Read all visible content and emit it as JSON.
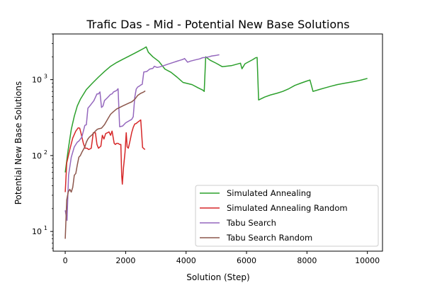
{
  "chart_data": {
    "type": "line",
    "title": "Trafic Das - Mid - Potential New Base Solutions",
    "xlabel": "Solution (Step)",
    "ylabel": "Potential New Base Solutions",
    "xlim": [
      -400,
      10500
    ],
    "ylim": [
      5.5,
      4000
    ],
    "yscale": "log",
    "x_ticks": [
      0,
      2000,
      4000,
      6000,
      8000,
      10000
    ],
    "x_tick_labels": [
      "0",
      "2000",
      "4000",
      "6000",
      "8000",
      "10000"
    ],
    "y_ticks": [
      10,
      100,
      1000
    ],
    "y_tick_labels": [
      "10^1",
      "10^2",
      "10^3"
    ],
    "grid": false,
    "legend_position": "lower right",
    "series": [
      {
        "name": "Simulated Annealing",
        "color": "#2ca02c",
        "points": [
          [
            0,
            60
          ],
          [
            100,
            120
          ],
          [
            200,
            220
          ],
          [
            300,
            330
          ],
          [
            400,
            450
          ],
          [
            500,
            550
          ],
          [
            700,
            740
          ],
          [
            900,
            900
          ],
          [
            1100,
            1080
          ],
          [
            1300,
            1280
          ],
          [
            1500,
            1500
          ],
          [
            1700,
            1680
          ],
          [
            1900,
            1850
          ],
          [
            2100,
            2030
          ],
          [
            2300,
            2230
          ],
          [
            2450,
            2400
          ],
          [
            2600,
            2580
          ],
          [
            2680,
            2700
          ],
          [
            2750,
            2300
          ],
          [
            2900,
            2000
          ],
          [
            3100,
            1740
          ],
          [
            3300,
            1380
          ],
          [
            3500,
            1250
          ],
          [
            3700,
            1080
          ],
          [
            3900,
            920
          ],
          [
            4200,
            860
          ],
          [
            4400,
            780
          ],
          [
            4550,
            730
          ],
          [
            4600,
            700
          ],
          [
            4650,
            2000
          ],
          [
            4800,
            1800
          ],
          [
            5000,
            1640
          ],
          [
            5200,
            1480
          ],
          [
            5500,
            1530
          ],
          [
            5800,
            1650
          ],
          [
            5850,
            1390
          ],
          [
            5950,
            1620
          ],
          [
            6200,
            1830
          ],
          [
            6300,
            1940
          ],
          [
            6350,
            1960
          ],
          [
            6400,
            540
          ],
          [
            6600,
            590
          ],
          [
            6800,
            630
          ],
          [
            7000,
            660
          ],
          [
            7200,
            700
          ],
          [
            7400,
            760
          ],
          [
            7600,
            840
          ],
          [
            7800,
            900
          ],
          [
            8000,
            960
          ],
          [
            8100,
            990
          ],
          [
            8200,
            700
          ],
          [
            8400,
            740
          ],
          [
            8600,
            780
          ],
          [
            8800,
            820
          ],
          [
            9000,
            860
          ],
          [
            9200,
            890
          ],
          [
            9400,
            920
          ],
          [
            9600,
            950
          ],
          [
            9800,
            990
          ],
          [
            10000,
            1040
          ]
        ]
      },
      {
        "name": "Simulated Annealing Random",
        "color": "#d62728",
        "points": [
          [
            0,
            33
          ],
          [
            50,
            80
          ],
          [
            150,
            120
          ],
          [
            250,
            170
          ],
          [
            350,
            210
          ],
          [
            430,
            232
          ],
          [
            480,
            230
          ],
          [
            520,
            200
          ],
          [
            600,
            145
          ],
          [
            660,
            125
          ],
          [
            720,
            125
          ],
          [
            780,
            120
          ],
          [
            860,
            125
          ],
          [
            930,
            200
          ],
          [
            1000,
            200
          ],
          [
            1050,
            140
          ],
          [
            1100,
            125
          ],
          [
            1180,
            133
          ],
          [
            1230,
            185
          ],
          [
            1280,
            165
          ],
          [
            1340,
            195
          ],
          [
            1400,
            200
          ],
          [
            1450,
            205
          ],
          [
            1500,
            185
          ],
          [
            1550,
            210
          ],
          [
            1620,
            145
          ],
          [
            1660,
            140
          ],
          [
            1700,
            145
          ],
          [
            1750,
            145
          ],
          [
            1800,
            140
          ],
          [
            1840,
            140
          ],
          [
            1870,
            55
          ],
          [
            1890,
            42
          ],
          [
            1930,
            70
          ],
          [
            1980,
            110
          ],
          [
            2020,
            200
          ],
          [
            2050,
            130
          ],
          [
            2090,
            125
          ],
          [
            2150,
            160
          ],
          [
            2200,
            200
          ],
          [
            2250,
            235
          ],
          [
            2300,
            260
          ],
          [
            2350,
            265
          ],
          [
            2400,
            275
          ],
          [
            2450,
            285
          ],
          [
            2500,
            295
          ],
          [
            2560,
            128
          ],
          [
            2640,
            120
          ]
        ]
      },
      {
        "name": "Tabu Search",
        "color": "#9467bd",
        "points": [
          [
            0,
            19
          ],
          [
            60,
            14
          ],
          [
            110,
            55
          ],
          [
            200,
            95
          ],
          [
            300,
            130
          ],
          [
            400,
            150
          ],
          [
            450,
            155
          ],
          [
            550,
            175
          ],
          [
            650,
            250
          ],
          [
            700,
            255
          ],
          [
            750,
            420
          ],
          [
            850,
            470
          ],
          [
            950,
            530
          ],
          [
            1050,
            650
          ],
          [
            1100,
            650
          ],
          [
            1150,
            690
          ],
          [
            1200,
            430
          ],
          [
            1250,
            450
          ],
          [
            1300,
            530
          ],
          [
            1400,
            580
          ],
          [
            1500,
            640
          ],
          [
            1550,
            650
          ],
          [
            1600,
            690
          ],
          [
            1700,
            720
          ],
          [
            1750,
            760
          ],
          [
            1800,
            240
          ],
          [
            1900,
            245
          ],
          [
            2000,
            270
          ],
          [
            2100,
            285
          ],
          [
            2200,
            300
          ],
          [
            2250,
            325
          ],
          [
            2300,
            580
          ],
          [
            2350,
            750
          ],
          [
            2400,
            800
          ],
          [
            2450,
            820
          ],
          [
            2500,
            850
          ],
          [
            2550,
            870
          ],
          [
            2600,
            1260
          ],
          [
            2700,
            1280
          ],
          [
            2800,
            1380
          ],
          [
            2900,
            1410
          ],
          [
            2950,
            1500
          ],
          [
            3000,
            1470
          ],
          [
            3050,
            1450
          ],
          [
            3150,
            1480
          ],
          [
            3300,
            1550
          ],
          [
            3400,
            1600
          ],
          [
            3500,
            1650
          ],
          [
            3600,
            1700
          ],
          [
            3700,
            1750
          ],
          [
            3800,
            1800
          ],
          [
            3900,
            1850
          ],
          [
            3950,
            1900
          ],
          [
            4050,
            1700
          ],
          [
            4150,
            1760
          ],
          [
            4300,
            1820
          ],
          [
            4450,
            1880
          ],
          [
            4550,
            1950
          ],
          [
            4650,
            1960
          ],
          [
            4750,
            2000
          ],
          [
            4850,
            2050
          ],
          [
            5000,
            2090
          ],
          [
            5100,
            2130
          ]
        ]
      },
      {
        "name": "Tabu Search Random",
        "color": "#8c564b",
        "points": [
          [
            0,
            8
          ],
          [
            50,
            26
          ],
          [
            100,
            33
          ],
          [
            150,
            36
          ],
          [
            200,
            33
          ],
          [
            250,
            38
          ],
          [
            300,
            55
          ],
          [
            350,
            58
          ],
          [
            400,
            75
          ],
          [
            450,
            95
          ],
          [
            500,
            100
          ],
          [
            550,
            110
          ],
          [
            600,
            120
          ],
          [
            650,
            130
          ],
          [
            700,
            150
          ],
          [
            750,
            165
          ],
          [
            800,
            175
          ],
          [
            900,
            190
          ],
          [
            1000,
            210
          ],
          [
            1050,
            220
          ],
          [
            1100,
            225
          ],
          [
            1200,
            230
          ],
          [
            1300,
            255
          ],
          [
            1400,
            300
          ],
          [
            1500,
            350
          ],
          [
            1600,
            380
          ],
          [
            1700,
            410
          ],
          [
            1800,
            430
          ],
          [
            1900,
            450
          ],
          [
            2000,
            470
          ],
          [
            2100,
            490
          ],
          [
            2200,
            510
          ],
          [
            2300,
            550
          ],
          [
            2400,
            620
          ],
          [
            2500,
            660
          ],
          [
            2600,
            690
          ],
          [
            2650,
            710
          ]
        ]
      }
    ]
  }
}
